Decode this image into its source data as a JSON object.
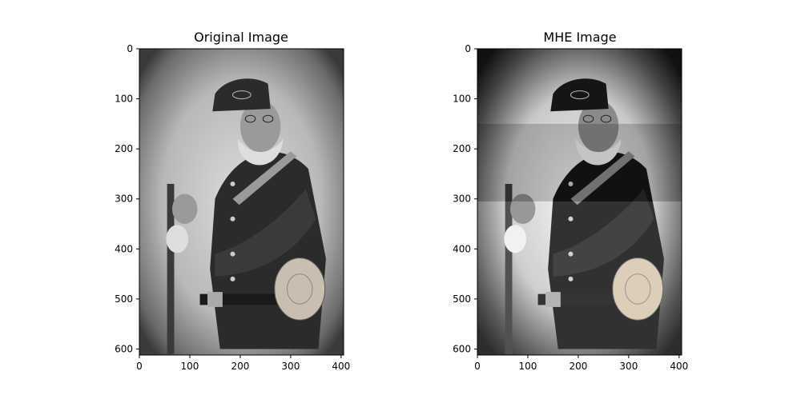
{
  "chart_data": [
    {
      "type": "image",
      "title": "Original Image",
      "xlim": [
        0,
        405
      ],
      "ylim": [
        612,
        0
      ],
      "xticks": [
        0,
        100,
        200,
        300,
        400
      ],
      "yticks": [
        0,
        100,
        200,
        300,
        400,
        500,
        600
      ],
      "colormap": "gray",
      "grid": false,
      "content": "grayscale photograph of a bearded man in a Union soldier uniform and cap holding a rifle, with a canteen at his hip, vignetted grunge border"
    },
    {
      "type": "image",
      "title": "MHE Image",
      "xlim": [
        0,
        405
      ],
      "ylim": [
        612,
        0
      ],
      "xticks": [
        0,
        100,
        200,
        300,
        400
      ],
      "yticks": [
        0,
        100,
        200,
        300,
        400,
        500,
        600
      ],
      "colormap": "gray",
      "grid": false,
      "content": "contrast-enhanced version of the same photograph with visible horizontal band boundaries",
      "band_boundaries_y": [
        150,
        305
      ]
    }
  ]
}
